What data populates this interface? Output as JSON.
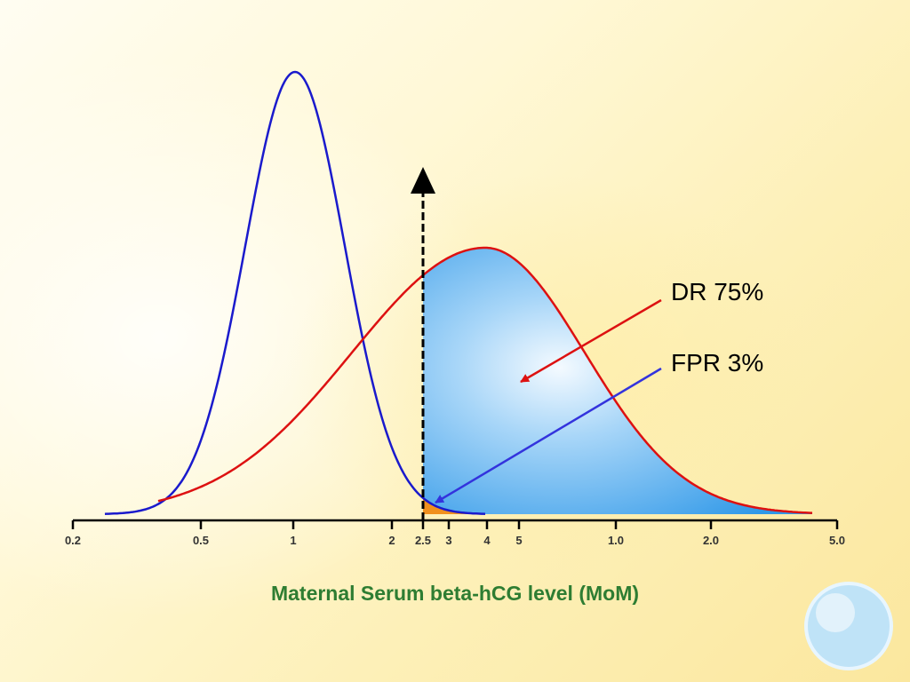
{
  "chart_data": {
    "type": "area",
    "xlabel": "Maternal Serum beta-hCG level (MoM)",
    "x_ticks": [
      "0.2",
      "0.5",
      "1",
      "2",
      "2.5",
      "3",
      "4",
      "5",
      "1.0",
      "2.0",
      "5.0"
    ],
    "cutoff": "2.5",
    "series": [
      {
        "color": "#1a1acc",
        "peak_at": "1"
      },
      {
        "color": "#dd1111",
        "peak_at": "4"
      }
    ],
    "annotations": [
      {
        "label": "DR 75%",
        "color": "#dd1111",
        "percent": 75
      },
      {
        "label": "FPR 3%",
        "color": "#3333dd",
        "percent": 3
      }
    ],
    "shading": {
      "detection": "#5ab0f0",
      "false_positive": "#f0901e"
    }
  }
}
